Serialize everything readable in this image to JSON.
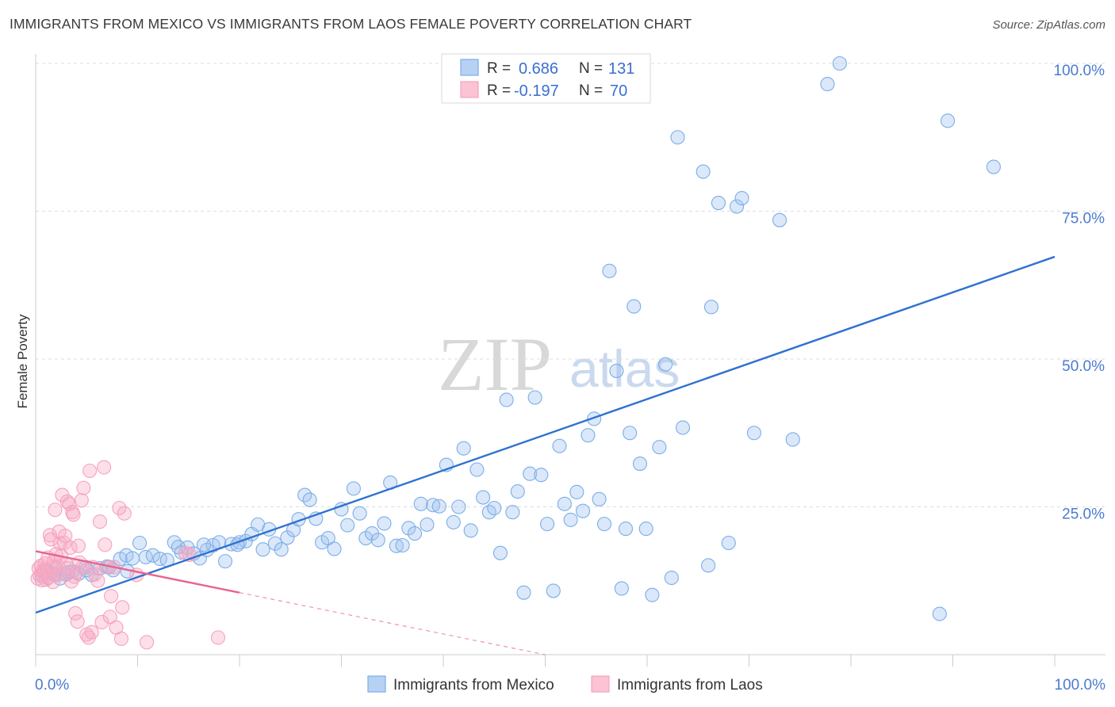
{
  "chart_data": {
    "type": "scatter",
    "title": "IMMIGRANTS FROM MEXICO VS IMMIGRANTS FROM LAOS FEMALE POVERTY CORRELATION CHART",
    "source": "Source: ZipAtlas.com",
    "ylabel": "Female Poverty",
    "xlim": [
      0,
      100
    ],
    "ylim": [
      0,
      100
    ],
    "x_tick_labels": [
      "0.0%",
      "100.0%"
    ],
    "y_tick_labels": [
      "25.0%",
      "50.0%",
      "75.0%",
      "100.0%"
    ],
    "y_tick_values": [
      25,
      50,
      75,
      100
    ],
    "watermark": {
      "zip": "ZIP",
      "atlas": "atlas"
    },
    "legend_box": {
      "rows": [
        {
          "r_label": "R =",
          "r_value": "0.686",
          "n_label": "N =",
          "n_value": "131"
        },
        {
          "r_label": "R =",
          "r_value": "-0.197",
          "n_label": "N =",
          "n_value": "70"
        }
      ]
    },
    "series": [
      {
        "name": "Immigrants from Mexico",
        "color": "#7aaee8",
        "line_color": "#2f72d0",
        "trend": {
          "x0": 0,
          "y0": 7.1,
          "x1": 100,
          "y1": 67.3,
          "dashed_from": null
        },
        "points": [
          [
            0.6,
            13.5
          ],
          [
            0.9,
            14.2
          ],
          [
            1.2,
            13.0
          ],
          [
            1.5,
            13.8
          ],
          [
            2.0,
            14.5
          ],
          [
            2.4,
            12.9
          ],
          [
            3.0,
            13.6
          ],
          [
            3.6,
            14.1
          ],
          [
            4.2,
            13.7
          ],
          [
            4.9,
            14.8
          ],
          [
            5.5,
            13.5
          ],
          [
            6.3,
            14.6
          ],
          [
            7.0,
            14.9
          ],
          [
            7.6,
            14.3
          ],
          [
            8.3,
            16.2
          ],
          [
            8.9,
            16.8
          ],
          [
            9.5,
            16.3
          ],
          [
            10.2,
            18.9
          ],
          [
            10.8,
            16.5
          ],
          [
            11.5,
            16.8
          ],
          [
            12.2,
            16.2
          ],
          [
            12.9,
            16.0
          ],
          [
            13.6,
            19.0
          ],
          [
            14.3,
            17.3
          ],
          [
            14.9,
            18.1
          ],
          [
            15.5,
            17.1
          ],
          [
            16.1,
            16.3
          ],
          [
            16.8,
            17.7
          ],
          [
            17.4,
            18.5
          ],
          [
            18.0,
            19.0
          ],
          [
            18.6,
            15.8
          ],
          [
            19.2,
            18.7
          ],
          [
            20.0,
            19.0
          ],
          [
            20.6,
            19.2
          ],
          [
            21.2,
            20.4
          ],
          [
            21.8,
            22.0
          ],
          [
            22.3,
            17.8
          ],
          [
            22.9,
            21.2
          ],
          [
            23.5,
            18.8
          ],
          [
            24.1,
            17.8
          ],
          [
            24.7,
            19.8
          ],
          [
            25.3,
            21.1
          ],
          [
            25.8,
            22.9
          ],
          [
            26.4,
            27.0
          ],
          [
            26.9,
            26.2
          ],
          [
            27.5,
            23.0
          ],
          [
            28.1,
            19.0
          ],
          [
            28.7,
            19.7
          ],
          [
            29.3,
            17.9
          ],
          [
            30.0,
            24.6
          ],
          [
            30.6,
            21.9
          ],
          [
            31.2,
            28.1
          ],
          [
            31.8,
            23.9
          ],
          [
            32.4,
            19.7
          ],
          [
            33.0,
            20.5
          ],
          [
            33.6,
            19.4
          ],
          [
            34.2,
            22.2
          ],
          [
            34.8,
            29.1
          ],
          [
            35.4,
            18.4
          ],
          [
            36.0,
            18.5
          ],
          [
            36.6,
            21.4
          ],
          [
            37.2,
            20.5
          ],
          [
            37.8,
            25.5
          ],
          [
            38.4,
            22.0
          ],
          [
            39.0,
            25.3
          ],
          [
            39.6,
            25.1
          ],
          [
            40.3,
            32.1
          ],
          [
            41.0,
            22.4
          ],
          [
            41.5,
            25.0
          ],
          [
            42.0,
            34.9
          ],
          [
            42.7,
            21.0
          ],
          [
            43.3,
            31.3
          ],
          [
            43.9,
            26.6
          ],
          [
            44.5,
            24.1
          ],
          [
            45.0,
            24.8
          ],
          [
            45.6,
            17.2
          ],
          [
            46.2,
            43.1
          ],
          [
            46.8,
            24.1
          ],
          [
            47.3,
            27.6
          ],
          [
            47.9,
            10.5
          ],
          [
            48.5,
            30.6
          ],
          [
            49.0,
            43.5
          ],
          [
            49.6,
            30.4
          ],
          [
            50.2,
            22.1
          ],
          [
            50.8,
            10.8
          ],
          [
            51.4,
            35.3
          ],
          [
            51.9,
            25.5
          ],
          [
            52.5,
            22.8
          ],
          [
            53.1,
            27.5
          ],
          [
            53.7,
            24.3
          ],
          [
            54.2,
            37.1
          ],
          [
            54.8,
            39.9
          ],
          [
            55.3,
            26.3
          ],
          [
            55.8,
            22.1
          ],
          [
            56.3,
            64.9
          ],
          [
            57.0,
            48.0
          ],
          [
            57.5,
            11.2
          ],
          [
            57.9,
            21.3
          ],
          [
            58.3,
            37.5
          ],
          [
            58.7,
            58.9
          ],
          [
            59.3,
            32.3
          ],
          [
            59.9,
            21.3
          ],
          [
            60.5,
            10.1
          ],
          [
            61.2,
            35.1
          ],
          [
            61.8,
            49.1
          ],
          [
            62.4,
            13.0
          ],
          [
            63.0,
            87.5
          ],
          [
            63.5,
            38.4
          ],
          [
            65.5,
            81.7
          ],
          [
            66.0,
            15.1
          ],
          [
            66.3,
            58.8
          ],
          [
            67.0,
            76.4
          ],
          [
            68.0,
            18.9
          ],
          [
            68.8,
            75.8
          ],
          [
            69.3,
            77.2
          ],
          [
            70.5,
            37.5
          ],
          [
            73.0,
            73.5
          ],
          [
            74.3,
            36.4
          ],
          [
            77.7,
            96.5
          ],
          [
            78.9,
            100.0
          ],
          [
            88.7,
            6.9
          ],
          [
            89.5,
            90.3
          ],
          [
            94.0,
            82.5
          ],
          [
            14.0,
            18.2
          ],
          [
            16.5,
            18.6
          ],
          [
            19.8,
            18.6
          ],
          [
            9.0,
            14.1
          ],
          [
            7.2,
            14.8
          ],
          [
            5.0,
            14.3
          ],
          [
            3.2,
            13.9
          ],
          [
            1.8,
            13.6
          ]
        ]
      },
      {
        "name": "Immigrants from Laos",
        "color": "#f5a3bd",
        "line_color": "#e8648f",
        "trend": {
          "x0": 0,
          "y0": 17.5,
          "x1": 50,
          "y1": 0.0,
          "dashed_from": 20
        },
        "points": [
          [
            0.2,
            12.9
          ],
          [
            0.3,
            14.6
          ],
          [
            0.4,
            13.4
          ],
          [
            0.5,
            15.0
          ],
          [
            0.6,
            12.6
          ],
          [
            0.7,
            14.2
          ],
          [
            0.8,
            13.9
          ],
          [
            0.9,
            15.4
          ],
          [
            1.0,
            12.7
          ],
          [
            1.1,
            14.0
          ],
          [
            1.2,
            16.4
          ],
          [
            1.3,
            13.1
          ],
          [
            1.4,
            20.2
          ],
          [
            1.5,
            19.5
          ],
          [
            1.6,
            14.7
          ],
          [
            1.7,
            12.3
          ],
          [
            1.8,
            15.9
          ],
          [
            1.9,
            24.5
          ],
          [
            2.0,
            17.0
          ],
          [
            2.1,
            13.5
          ],
          [
            2.2,
            14.9
          ],
          [
            2.3,
            20.8
          ],
          [
            2.4,
            18.8
          ],
          [
            2.5,
            16.7
          ],
          [
            2.6,
            27.0
          ],
          [
            2.7,
            13.7
          ],
          [
            2.8,
            18.9
          ],
          [
            2.9,
            20.1
          ],
          [
            3.0,
            15.3
          ],
          [
            3.1,
            25.9
          ],
          [
            3.2,
            14.6
          ],
          [
            3.3,
            25.5
          ],
          [
            3.4,
            18.1
          ],
          [
            3.5,
            12.4
          ],
          [
            3.6,
            24.1
          ],
          [
            3.7,
            23.7
          ],
          [
            3.8,
            13.2
          ],
          [
            3.9,
            7.0
          ],
          [
            4.0,
            13.9
          ],
          [
            4.1,
            5.6
          ],
          [
            4.2,
            18.4
          ],
          [
            4.3,
            15.6
          ],
          [
            4.5,
            26.1
          ],
          [
            4.6,
            14.8
          ],
          [
            4.7,
            28.2
          ],
          [
            5.0,
            3.4
          ],
          [
            5.2,
            2.9
          ],
          [
            5.3,
            31.1
          ],
          [
            5.5,
            3.8
          ],
          [
            5.6,
            14.8
          ],
          [
            5.8,
            13.6
          ],
          [
            6.1,
            12.5
          ],
          [
            6.3,
            22.5
          ],
          [
            6.5,
            5.5
          ],
          [
            6.7,
            31.7
          ],
          [
            6.8,
            18.6
          ],
          [
            7.0,
            14.8
          ],
          [
            7.3,
            6.4
          ],
          [
            7.4,
            9.9
          ],
          [
            7.7,
            14.8
          ],
          [
            7.9,
            4.6
          ],
          [
            8.2,
            24.8
          ],
          [
            8.4,
            2.7
          ],
          [
            8.5,
            8.0
          ],
          [
            8.7,
            23.9
          ],
          [
            9.9,
            13.5
          ],
          [
            10.9,
            2.1
          ],
          [
            14.7,
            17.2
          ],
          [
            15.1,
            16.9
          ],
          [
            17.9,
            2.9
          ]
        ]
      }
    ]
  },
  "legend_bottom": [
    {
      "label": "Immigrants from Mexico",
      "fill": "#b7d1f4",
      "stroke": "#7aaee8"
    },
    {
      "label": "Immigrants from Laos",
      "fill": "#fbc3d3",
      "stroke": "#f5a3bd"
    }
  ]
}
